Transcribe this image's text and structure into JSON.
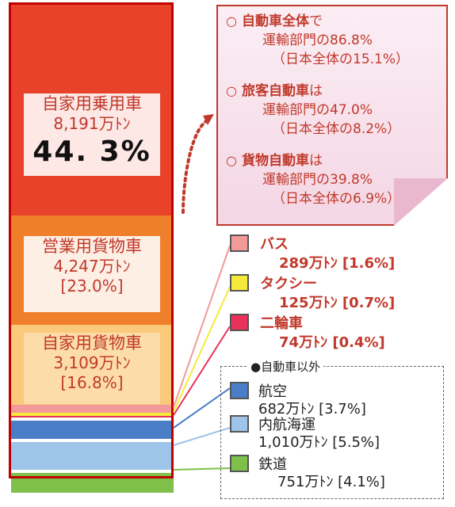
{
  "chart_data": {
    "type": "bar",
    "subtype": "stacked-single-column",
    "unit": "万ﾄﾝ",
    "segments": [
      {
        "name": "自家用乗用車",
        "value": 8191,
        "value_text": "8,191万ﾄﾝ",
        "percent": 44.3,
        "percent_text": "44. 3%",
        "color": "#e8432a"
      },
      {
        "name": "営業用貨物車",
        "value": 4247,
        "value_text": "4,247万ﾄﾝ",
        "percent": 23.0,
        "percent_text": "[23.0%]",
        "color": "#f07f2b"
      },
      {
        "name": "自家用貨物車",
        "value": 3109,
        "value_text": "3,109万ﾄﾝ",
        "percent": 16.8,
        "percent_text": "[16.8%]",
        "color": "#fac97a"
      },
      {
        "name": "バス",
        "value": 289,
        "value_text": "289万ﾄﾝ",
        "percent": 1.6,
        "percent_text": "[1.6%]",
        "color": "#f29a9a"
      },
      {
        "name": "タクシー",
        "value": 125,
        "value_text": "125万ﾄﾝ",
        "percent": 0.7,
        "percent_text": "[0.7%]",
        "color": "#f5ea3b"
      },
      {
        "name": "二輪車",
        "value": 74,
        "value_text": "74万ﾄﾝ",
        "percent": 0.4,
        "percent_text": "[0.4%]",
        "color": "#e8325a"
      },
      {
        "name": "航空",
        "value": 682,
        "value_text": "682万ﾄﾝ",
        "percent": 3.7,
        "percent_text": "[3.7%]",
        "color": "#4a7fc8"
      },
      {
        "name": "内航海運",
        "value": 1010,
        "value_text": "1,010万ﾄﾝ",
        "percent": 5.5,
        "percent_text": "[5.5%]",
        "color": "#9fc4ea"
      },
      {
        "name": "鉄道",
        "value": 751,
        "value_text": "751万ﾄﾝ",
        "percent": 4.1,
        "percent_text": "[4.1%]",
        "color": "#7ec04a"
      }
    ],
    "other_group_title": "●自動車以外"
  },
  "callout": {
    "items": [
      {
        "bullet": "○",
        "title": "自動車全体",
        "suffix": "で",
        "line1": "運輸部門の86.8%",
        "line2": "（日本全体の15.1%）"
      },
      {
        "bullet": "○",
        "title": "旅客自動車",
        "suffix": "は",
        "line1": "運輸部門の47.0%",
        "line2": "（日本全体の8.2%）"
      },
      {
        "bullet": "○",
        "title": "貨物自動車",
        "suffix": "は",
        "line1": "運輸部門の39.8%",
        "line2": "（日本全体の6.9%）"
      }
    ]
  },
  "colors": {
    "accent_red": "#c0392b",
    "outline_red": "#c00000",
    "callout_bg": "#f4d6e4"
  }
}
